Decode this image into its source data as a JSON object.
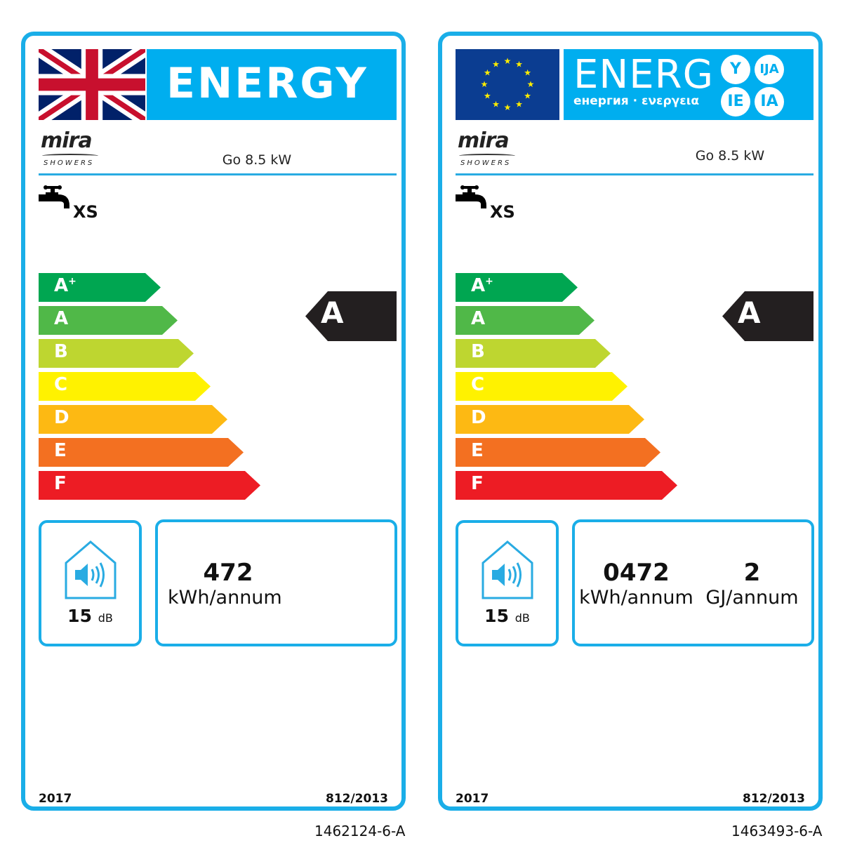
{
  "labels": [
    {
      "flag": "uk-flag",
      "energy_title": "ENERGY",
      "brand": "mira",
      "brand_sub": "SHOWERS",
      "model": "Go 8.5 kW",
      "load_profile": "XS",
      "scale": [
        {
          "label": "A",
          "sup": "+",
          "color": "#00a651"
        },
        {
          "label": "A",
          "sup": "",
          "color": "#50b848"
        },
        {
          "label": "B",
          "sup": "",
          "color": "#bed630"
        },
        {
          "label": "C",
          "sup": "",
          "color": "#fff200"
        },
        {
          "label": "D",
          "sup": "",
          "color": "#fdb913"
        },
        {
          "label": "E",
          "sup": "",
          "color": "#f37021"
        },
        {
          "label": "F",
          "sup": "",
          "color": "#ed1c24"
        }
      ],
      "rating": "A",
      "sound_value": "15",
      "sound_unit": "dB",
      "consumption": [
        {
          "value": "472",
          "unit": "kWh/annum"
        }
      ],
      "year": "2017",
      "regulation": "812/2013",
      "code": "1462124-6-A"
    },
    {
      "flag": "eu-flag",
      "energy_title": "ENERG",
      "energy_subtitle": "енергия · ενεργεια",
      "language_suffixes": [
        "Y",
        "IJA",
        "IE",
        "IA"
      ],
      "brand": "mira",
      "brand_sub": "SHOWERS",
      "model": "Go 8.5 kW",
      "load_profile": "XS",
      "scale": [
        {
          "label": "A",
          "sup": "+",
          "color": "#00a651"
        },
        {
          "label": "A",
          "sup": "",
          "color": "#50b848"
        },
        {
          "label": "B",
          "sup": "",
          "color": "#bed630"
        },
        {
          "label": "C",
          "sup": "",
          "color": "#fff200"
        },
        {
          "label": "D",
          "sup": "",
          "color": "#fdb913"
        },
        {
          "label": "E",
          "sup": "",
          "color": "#f37021"
        },
        {
          "label": "F",
          "sup": "",
          "color": "#ed1c24"
        }
      ],
      "rating": "A",
      "sound_value": "15",
      "sound_unit": "dB",
      "consumption": [
        {
          "value": "0472",
          "unit": "kWh/annum"
        },
        {
          "value": "2",
          "unit": "GJ/annum"
        }
      ],
      "year": "2017",
      "regulation": "812/2013",
      "code": "1463493-6-A"
    }
  ],
  "colors": {
    "border": "#1aaee8",
    "header": "#00aeef",
    "indicator": "#231f20"
  }
}
